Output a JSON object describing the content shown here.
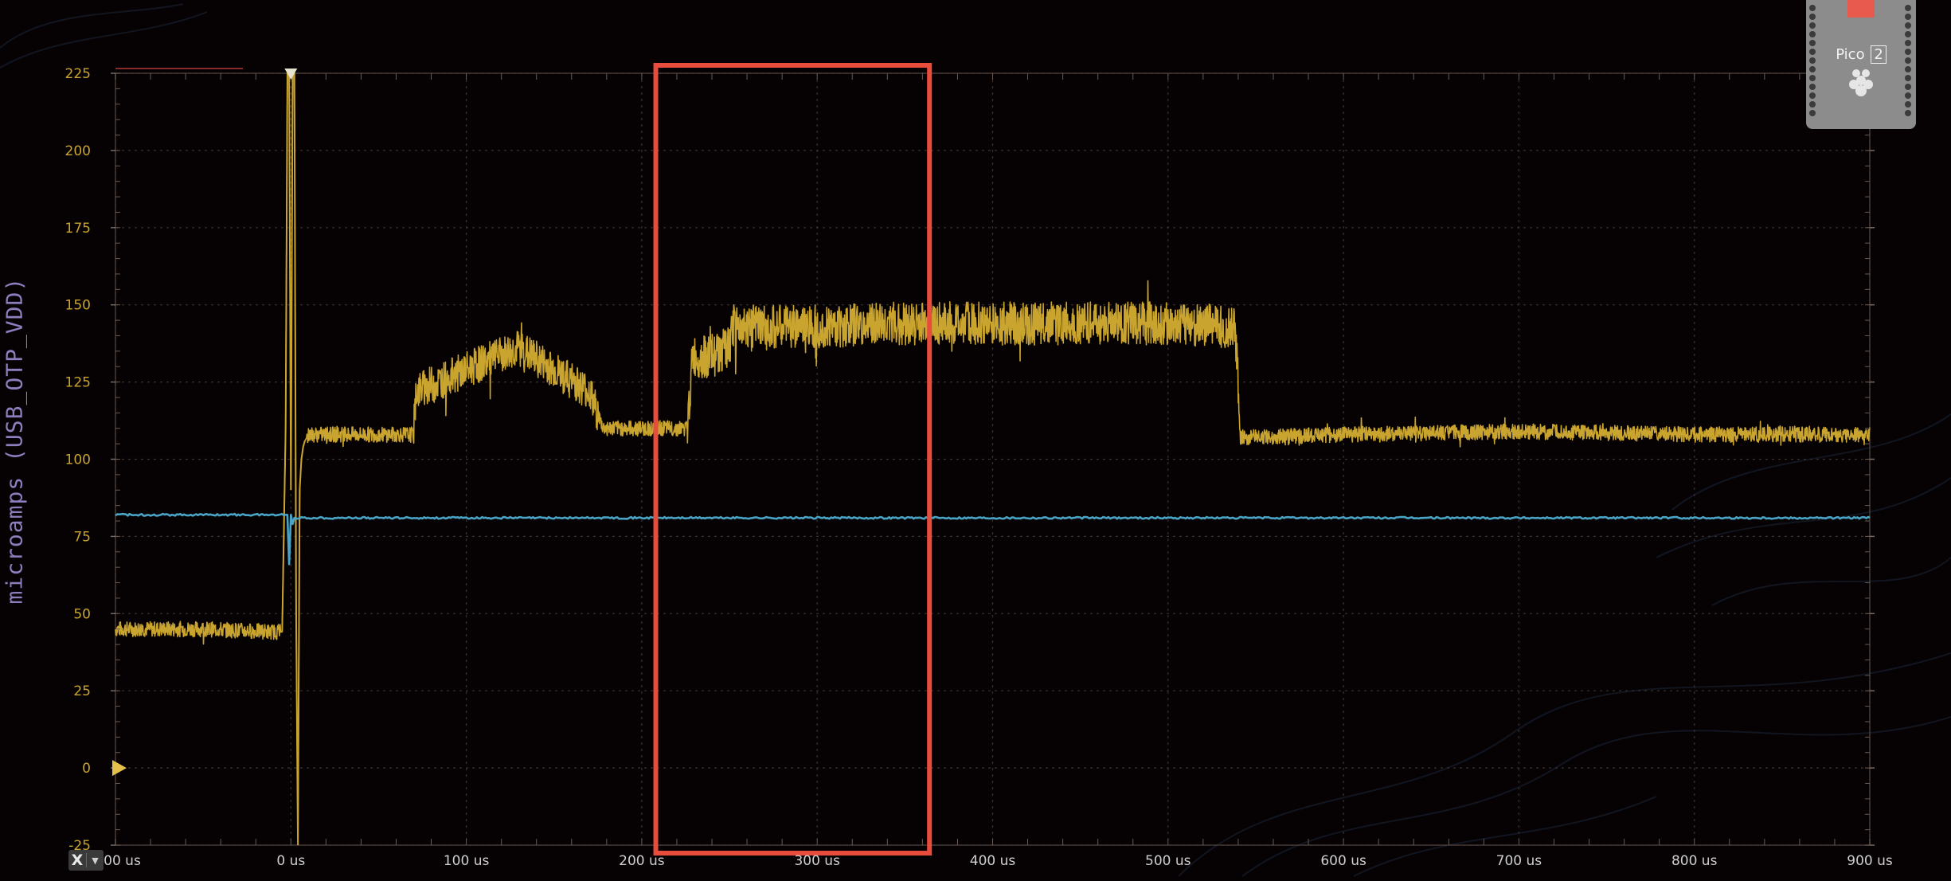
{
  "chart_data": {
    "type": "line",
    "title": "",
    "xlabel": "",
    "ylabel": "microamps (USB_OTP_VDD)",
    "x_unit": "us",
    "xlim": [
      -100,
      900
    ],
    "ylim": [
      -25,
      225
    ],
    "x_ticks": [
      -100,
      0,
      100,
      200,
      300,
      400,
      500,
      600,
      700,
      800,
      900
    ],
    "x_tick_labels": [
      "-100 us",
      "0 us",
      "100 us",
      "200 us",
      "300 us",
      "400 us",
      "500 us",
      "600 us",
      "700 us",
      "800 us",
      "900 us"
    ],
    "y_ticks": [
      -25,
      0,
      25,
      50,
      75,
      100,
      125,
      150,
      175,
      200,
      225
    ],
    "y_tick_labels": [
      "-25",
      "0",
      "25",
      "50",
      "75",
      "100",
      "125",
      "150",
      "175",
      "200",
      "225"
    ],
    "grid": true,
    "legend": "none",
    "series": [
      {
        "color": "#c9a42e",
        "x": [
          -100,
          -50,
          -5,
          -3,
          -2,
          -1,
          0,
          1,
          2,
          3,
          4,
          5,
          6,
          7,
          8,
          10,
          30,
          50,
          70,
          71,
          100,
          130,
          170,
          178,
          183,
          200,
          215,
          226,
          229,
          238,
          250,
          252,
          300,
          350,
          400,
          450,
          500,
          538,
          540,
          541,
          600,
          700,
          800,
          900
        ],
        "y": [
          45,
          45,
          44,
          110,
          225,
          225,
          90,
          225,
          225,
          50,
          -25,
          90,
          100,
          104,
          106,
          108,
          108,
          108,
          108,
          122,
          129,
          136,
          122,
          110,
          110,
          110,
          110,
          110,
          133,
          133,
          136,
          143,
          143,
          144,
          144,
          144,
          144,
          143,
          125,
          107,
          108,
          109,
          108,
          108
        ]
      },
      {
        "color": "#49a4c6",
        "x": [
          -100,
          -2,
          -1,
          0,
          1,
          2,
          100,
          300,
          500,
          700,
          900
        ],
        "y": [
          82,
          82,
          66,
          82,
          79,
          81,
          81,
          81,
          81,
          81,
          81
        ]
      }
    ],
    "markers": {
      "trigger_x": 0,
      "zero_level_y": 0,
      "marker_color": "#e3c04a",
      "trigger_color": "#e6e2d0"
    },
    "annotations": [
      {
        "type": "highlight-box",
        "x_range": [
          208,
          364
        ],
        "y_range": [
          -25,
          225
        ],
        "color": "#e74c3c"
      }
    ],
    "colors": {
      "background": "#060203",
      "grid": "#3a3230",
      "tick_text": "#c9a42e",
      "x_tick_text": "#cfcfcf"
    }
  },
  "controls": {
    "x_button_label": "X",
    "caret_icon": "chevron-down-icon"
  },
  "device": {
    "board_label": "Pico",
    "board_variant": "2",
    "icon": "raspberry-pi-board-icon"
  }
}
